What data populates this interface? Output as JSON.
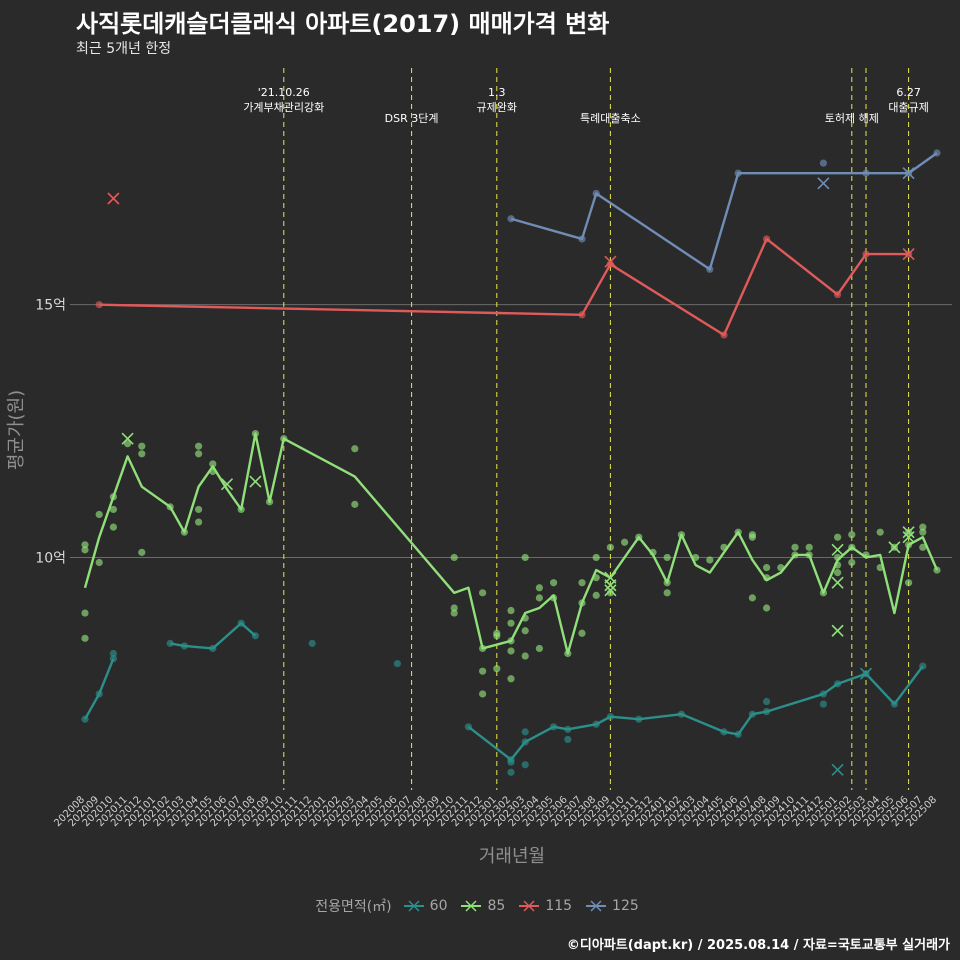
{
  "title": "사직롯데캐슬더클래식 아파트(2017) 매매가격 변화",
  "subtitle": "최근 5개년 한정",
  "caption": "©디아파트(dapt.kr) / 2025.08.14 / 자료=국토교통부 실거래가",
  "colors": {
    "background": "#2b2a2b",
    "grid": "#6a6a6a",
    "event_line": "#e6e64c",
    "s60": "#2b8f8a",
    "s85": "#90e07a",
    "s115": "#e05a5a",
    "s125": "#6f8db5"
  },
  "chart_data": {
    "type": "line",
    "title": "사직롯데캐슬더클래식 아파트(2017) 매매가격 변화",
    "xlabel": "거래년월",
    "ylabel": "평균가(원)",
    "ylim_eok": [
      5.4,
      19.8
    ],
    "y_ticks": [
      {
        "value": 10,
        "label": "10억"
      },
      {
        "value": 15,
        "label": "15억"
      }
    ],
    "categories": [
      "202008",
      "202009",
      "202010",
      "202011",
      "202012",
      "202101",
      "202102",
      "202103",
      "202104",
      "202105",
      "202106",
      "202107",
      "202108",
      "202109",
      "202110",
      "202111",
      "202112",
      "202201",
      "202202",
      "202203",
      "202204",
      "202205",
      "202206",
      "202207",
      "202208",
      "202209",
      "202210",
      "202211",
      "202212",
      "202301",
      "202302",
      "202303",
      "202304",
      "202305",
      "202306",
      "202307",
      "202308",
      "202309",
      "202310",
      "202311",
      "202312",
      "202401",
      "202402",
      "202403",
      "202404",
      "202405",
      "202406",
      "202407",
      "202408",
      "202409",
      "202410",
      "202411",
      "202412",
      "202501",
      "202502",
      "202503",
      "202504",
      "202505",
      "202506",
      "202507",
      "202508"
    ],
    "legend_title": "전용면적(㎡)",
    "events": [
      {
        "month": "202110",
        "label": "'21.10.26\n가계부채관리강화"
      },
      {
        "month": "202207",
        "label": "DSR 3단계"
      },
      {
        "month": "202301",
        "label": "1.3\n규제완화"
      },
      {
        "month": "202309",
        "label": "특례대출축소"
      },
      {
        "month": "202502",
        "label": "토허제 해제"
      },
      {
        "month": "202503",
        "label": ""
      },
      {
        "month": "202506",
        "label": "6.27\n대출규제"
      }
    ],
    "series": [
      {
        "name": "60",
        "color": "#2b8f8a",
        "line": [
          [
            "202008",
            6.8
          ],
          [
            "202009",
            7.3
          ],
          [
            "202010",
            8.0
          ],
          null,
          [
            "202102",
            8.3
          ],
          [
            "202103",
            8.25
          ],
          [
            "202105",
            8.2
          ],
          [
            "202107",
            8.7
          ],
          [
            "202108",
            8.45
          ],
          null,
          [
            "202211",
            6.65
          ],
          [
            "202302",
            6.0
          ],
          [
            "202303",
            6.35
          ],
          [
            "202305",
            6.65
          ],
          [
            "202306",
            6.6
          ],
          [
            "202308",
            6.7
          ],
          [
            "202309",
            6.85
          ],
          [
            "202311",
            6.8
          ],
          [
            "202402",
            6.9
          ],
          [
            "202405",
            6.55
          ],
          [
            "202406",
            6.5
          ],
          [
            "202407",
            6.9
          ],
          [
            "202408",
            6.95
          ],
          [
            "202412",
            7.3
          ],
          [
            "202501",
            7.5
          ],
          [
            "202503",
            7.7
          ],
          [
            "202505",
            7.1
          ],
          [
            "202507",
            7.85
          ]
        ],
        "points": [
          [
            "202008",
            6.8
          ],
          [
            "202009",
            7.3
          ],
          [
            "202010",
            8.0
          ],
          [
            "202010",
            8.1
          ],
          [
            "202102",
            8.3
          ],
          [
            "202103",
            8.25
          ],
          [
            "202105",
            8.2
          ],
          [
            "202107",
            8.7
          ],
          [
            "202108",
            8.45
          ],
          [
            "202112",
            8.3
          ],
          [
            "202206",
            7.9
          ],
          [
            "202211",
            6.65
          ],
          [
            "202302",
            5.95
          ],
          [
            "202302",
            5.75
          ],
          [
            "202302",
            6.0
          ],
          [
            "202303",
            6.35
          ],
          [
            "202303",
            6.55
          ],
          [
            "202303",
            5.9
          ],
          [
            "202305",
            6.65
          ],
          [
            "202306",
            6.6
          ],
          [
            "202306",
            6.4
          ],
          [
            "202308",
            6.7
          ],
          [
            "202309",
            6.85
          ],
          [
            "202311",
            6.8
          ],
          [
            "202402",
            6.9
          ],
          [
            "202405",
            6.55
          ],
          [
            "202406",
            6.5
          ],
          [
            "202407",
            6.9
          ],
          [
            "202408",
            6.95
          ],
          [
            "202408",
            7.15
          ],
          [
            "202412",
            7.3
          ],
          [
            "202412",
            7.1
          ],
          [
            "202501",
            7.5
          ],
          [
            "202503",
            7.7
          ],
          [
            "202505",
            7.1
          ],
          [
            "202507",
            7.85
          ]
        ],
        "cancelled": [
          [
            "202501",
            5.8
          ],
          [
            "202503",
            7.7
          ]
        ]
      },
      {
        "name": "85",
        "color": "#90e07a",
        "line": [
          [
            "202008",
            9.4
          ],
          [
            "202009",
            10.4
          ],
          [
            "202011",
            12.0
          ],
          [
            "202012",
            11.4
          ],
          [
            "202102",
            11.0
          ],
          [
            "202103",
            10.5
          ],
          [
            "202104",
            11.4
          ],
          [
            "202105",
            11.8
          ],
          [
            "202106",
            11.35
          ],
          [
            "202107",
            10.95
          ],
          [
            "202108",
            12.45
          ],
          [
            "202109",
            11.1
          ],
          [
            "202110",
            12.35
          ],
          [
            "202203",
            11.6
          ],
          [
            "202210",
            9.3
          ],
          [
            "202211",
            9.4
          ],
          [
            "202212",
            8.2
          ],
          [
            "202302",
            8.35
          ],
          [
            "202303",
            8.9
          ],
          [
            "202304",
            9.0
          ],
          [
            "202305",
            9.25
          ],
          [
            "202306",
            8.1
          ],
          [
            "202307",
            9.1
          ],
          [
            "202308",
            9.75
          ],
          [
            "202309",
            9.6
          ],
          [
            "202311",
            10.4
          ],
          [
            "202312",
            10.05
          ],
          [
            "202401",
            9.5
          ],
          [
            "202402",
            10.45
          ],
          [
            "202403",
            9.85
          ],
          [
            "202404",
            9.7
          ],
          [
            "202406",
            10.5
          ],
          [
            "202407",
            9.95
          ],
          [
            "202408",
            9.55
          ],
          [
            "202409",
            9.7
          ],
          [
            "202410",
            10.05
          ],
          [
            "202411",
            10.05
          ],
          [
            "202412",
            9.3
          ],
          [
            "202501",
            9.95
          ],
          [
            "202502",
            10.2
          ],
          [
            "202503",
            10.0
          ],
          [
            "202504",
            10.05
          ],
          [
            "202505",
            8.9
          ],
          [
            "202506",
            10.25
          ],
          [
            "202507",
            10.4
          ],
          [
            "202508",
            9.75
          ]
        ],
        "points": [
          [
            "202008",
            10.25
          ],
          [
            "202008",
            10.15
          ],
          [
            "202008",
            8.9
          ],
          [
            "202008",
            8.4
          ],
          [
            "202009",
            10.85
          ],
          [
            "202009",
            9.9
          ],
          [
            "202010",
            11.2
          ],
          [
            "202010",
            10.95
          ],
          [
            "202010",
            10.6
          ],
          [
            "202011",
            12.25
          ],
          [
            "202012",
            12.2
          ],
          [
            "202012",
            12.05
          ],
          [
            "202012",
            10.1
          ],
          [
            "202102",
            11.0
          ],
          [
            "202103",
            10.5
          ],
          [
            "202104",
            12.2
          ],
          [
            "202104",
            12.05
          ],
          [
            "202104",
            10.95
          ],
          [
            "202104",
            10.7
          ],
          [
            "202105",
            11.85
          ],
          [
            "202105",
            11.7
          ],
          [
            "202107",
            10.95
          ],
          [
            "202108",
            12.45
          ],
          [
            "202109",
            11.1
          ],
          [
            "202110",
            12.35
          ],
          [
            "202203",
            12.15
          ],
          [
            "202203",
            11.05
          ],
          [
            "202210",
            10.0
          ],
          [
            "202210",
            9.0
          ],
          [
            "202210",
            8.9
          ],
          [
            "202212",
            8.2
          ],
          [
            "202212",
            9.3
          ],
          [
            "202212",
            7.75
          ],
          [
            "202212",
            7.3
          ],
          [
            "202301",
            8.5
          ],
          [
            "202301",
            8.45
          ],
          [
            "202301",
            7.8
          ],
          [
            "202302",
            8.35
          ],
          [
            "202302",
            8.15
          ],
          [
            "202302",
            7.6
          ],
          [
            "202302",
            8.7
          ],
          [
            "202302",
            8.95
          ],
          [
            "202303",
            10.0
          ],
          [
            "202303",
            8.55
          ],
          [
            "202303",
            8.8
          ],
          [
            "202303",
            8.05
          ],
          [
            "202304",
            9.4
          ],
          [
            "202304",
            9.2
          ],
          [
            "202304",
            8.2
          ],
          [
            "202305",
            9.5
          ],
          [
            "202305",
            9.2
          ],
          [
            "202306",
            8.1
          ],
          [
            "202307",
            9.5
          ],
          [
            "202307",
            9.1
          ],
          [
            "202307",
            8.5
          ],
          [
            "202308",
            10.0
          ],
          [
            "202308",
            9.6
          ],
          [
            "202308",
            9.25
          ],
          [
            "202309",
            10.2
          ],
          [
            "202309",
            9.3
          ],
          [
            "202310",
            10.3
          ],
          [
            "202311",
            10.4
          ],
          [
            "202312",
            10.1
          ],
          [
            "202401",
            9.5
          ],
          [
            "202401",
            9.3
          ],
          [
            "202401",
            10.0
          ],
          [
            "202402",
            10.45
          ],
          [
            "202403",
            10.0
          ],
          [
            "202404",
            9.95
          ],
          [
            "202405",
            10.2
          ],
          [
            "202406",
            10.5
          ],
          [
            "202407",
            10.45
          ],
          [
            "202407",
            10.4
          ],
          [
            "202407",
            9.2
          ],
          [
            "202408",
            9.8
          ],
          [
            "202408",
            9.6
          ],
          [
            "202408",
            9.0
          ],
          [
            "202409",
            9.8
          ],
          [
            "202410",
            10.2
          ],
          [
            "202410",
            10.05
          ],
          [
            "202411",
            10.2
          ],
          [
            "202411",
            10.05
          ],
          [
            "202412",
            9.3
          ],
          [
            "202501",
            10.4
          ],
          [
            "202501",
            10.0
          ],
          [
            "202501",
            9.85
          ],
          [
            "202501",
            9.7
          ],
          [
            "202502",
            10.45
          ],
          [
            "202502",
            10.2
          ],
          [
            "202502",
            9.9
          ],
          [
            "202503",
            10.05
          ],
          [
            "202504",
            10.5
          ],
          [
            "202504",
            9.8
          ],
          [
            "202505",
            10.2
          ],
          [
            "202506",
            10.5
          ],
          [
            "202506",
            10.25
          ],
          [
            "202506",
            9.5
          ],
          [
            "202507",
            10.6
          ],
          [
            "202507",
            10.5
          ],
          [
            "202507",
            10.2
          ],
          [
            "202508",
            9.75
          ]
        ],
        "cancelled": [
          [
            "202011",
            12.35
          ],
          [
            "202106",
            11.45
          ],
          [
            "202108",
            11.5
          ],
          [
            "202309",
            9.6
          ],
          [
            "202309",
            9.45
          ],
          [
            "202309",
            9.35
          ],
          [
            "202501",
            10.15
          ],
          [
            "202501",
            9.5
          ],
          [
            "202501",
            8.55
          ],
          [
            "202505",
            10.2
          ],
          [
            "202506",
            10.5
          ],
          [
            "202506",
            10.4
          ]
        ]
      },
      {
        "name": "115",
        "color": "#e05a5a",
        "line": [
          [
            "202009",
            15.0
          ],
          [
            "202307",
            14.8
          ],
          [
            "202309",
            15.8
          ],
          [
            "202405",
            14.4
          ],
          [
            "202408",
            16.3
          ],
          [
            "202501",
            15.2
          ],
          [
            "202503",
            16.0
          ],
          [
            "202506",
            16.0
          ]
        ],
        "points": [
          [
            "202009",
            15.0
          ],
          [
            "202307",
            14.8
          ],
          [
            "202309",
            15.8
          ],
          [
            "202405",
            14.4
          ],
          [
            "202408",
            16.3
          ],
          [
            "202501",
            15.2
          ],
          [
            "202503",
            16.0
          ],
          [
            "202506",
            16.0
          ]
        ],
        "cancelled": [
          [
            "202010",
            17.1
          ],
          [
            "202309",
            15.85
          ],
          [
            "202506",
            16.0
          ]
        ]
      },
      {
        "name": "125",
        "color": "#6f8db5",
        "line": [
          [
            "202302",
            16.7
          ],
          [
            "202307",
            16.3
          ],
          [
            "202308",
            17.2
          ],
          [
            "202404",
            15.7
          ],
          [
            "202406",
            17.6
          ],
          [
            "202503",
            17.6
          ],
          [
            "202506",
            17.6
          ],
          [
            "202508",
            18.0
          ]
        ],
        "points": [
          [
            "202302",
            16.7
          ],
          [
            "202307",
            16.3
          ],
          [
            "202308",
            17.2
          ],
          [
            "202404",
            15.7
          ],
          [
            "202406",
            17.6
          ],
          [
            "202412",
            17.8
          ],
          [
            "202503",
            17.6
          ],
          [
            "202506",
            17.6
          ],
          [
            "202508",
            18.0
          ]
        ],
        "cancelled": [
          [
            "202412",
            17.4
          ],
          [
            "202506",
            17.6
          ]
        ]
      }
    ]
  }
}
